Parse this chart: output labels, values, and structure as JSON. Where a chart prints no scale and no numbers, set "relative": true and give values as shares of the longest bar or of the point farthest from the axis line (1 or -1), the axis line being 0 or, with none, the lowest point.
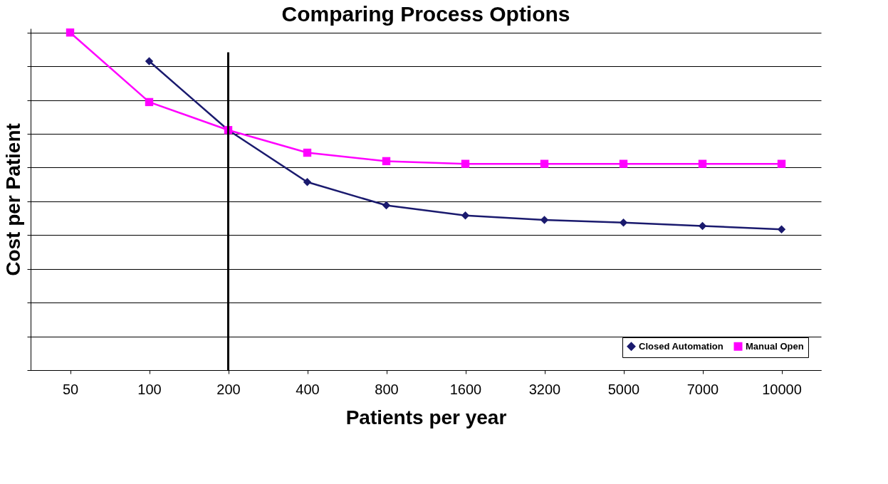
{
  "chart_data": {
    "type": "line",
    "title": "Comparing Process Options",
    "xlabel": "Patients per year",
    "ylabel": "Cost per Patient",
    "categories": [
      "50",
      "100",
      "200",
      "400",
      "800",
      "1600",
      "3200",
      "5000",
      "7000",
      "10000"
    ],
    "relative": true,
    "series": [
      {
        "name": "Closed Automation",
        "color": "#1a1a6e",
        "marker": "diamond",
        "values": [
          null,
          0.915,
          0.711,
          0.557,
          0.488,
          0.458,
          0.445,
          0.437,
          0.427,
          0.417
        ]
      },
      {
        "name": "Manual Open",
        "color": "#ff00ff",
        "marker": "square",
        "values": [
          1,
          0.794,
          0.711,
          0.644,
          0.619,
          0.611,
          0.611,
          0.611,
          0.611,
          0.611
        ]
      }
    ],
    "ref_lines": [
      {
        "axis": "x",
        "value": "200",
        "color": "#000000"
      }
    ],
    "grid": "y",
    "legend": "bottom right",
    "line_style": "solid"
  }
}
